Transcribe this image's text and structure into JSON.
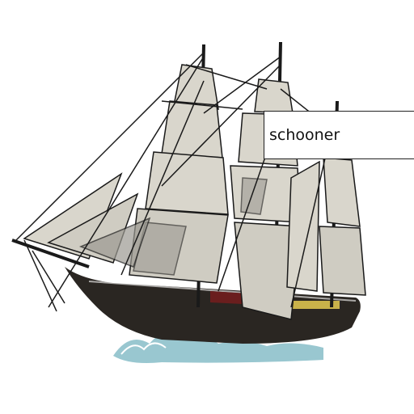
{
  "label": {
    "text": "schooner"
  },
  "colors": {
    "background": "#ffffff",
    "sail": "#d9d6cc",
    "sail_shadow": "#9c9a92",
    "hull": "#2a2622",
    "rigging": "#1a1a1a",
    "water": "#7fb9c4",
    "trim": "#c9b24a"
  }
}
